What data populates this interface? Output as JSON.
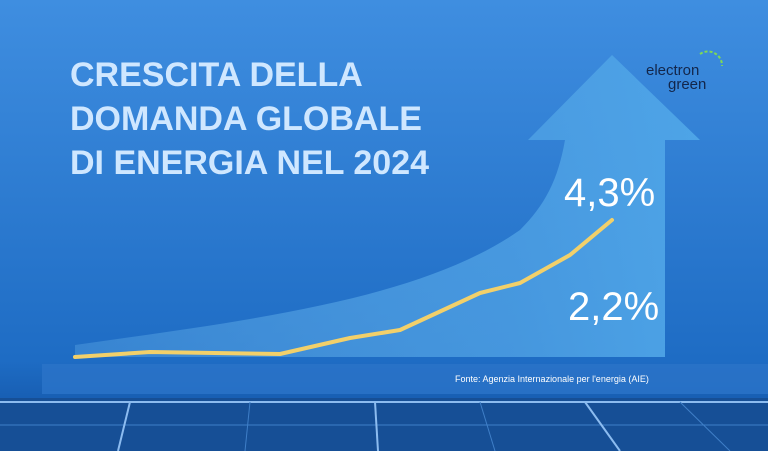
{
  "header": {
    "title_lines": [
      "CRESCITA DELLA",
      "DOMANDA GLOBALE",
      "DI ENERGIA NEL 2024"
    ]
  },
  "brand": {
    "line1": "electron",
    "line2": "green"
  },
  "labels": {
    "top": "4,3%",
    "bottom": "2,2%"
  },
  "source": "Fonte:  Agenzia Internazionale  per l'energia (AIE)"
}
